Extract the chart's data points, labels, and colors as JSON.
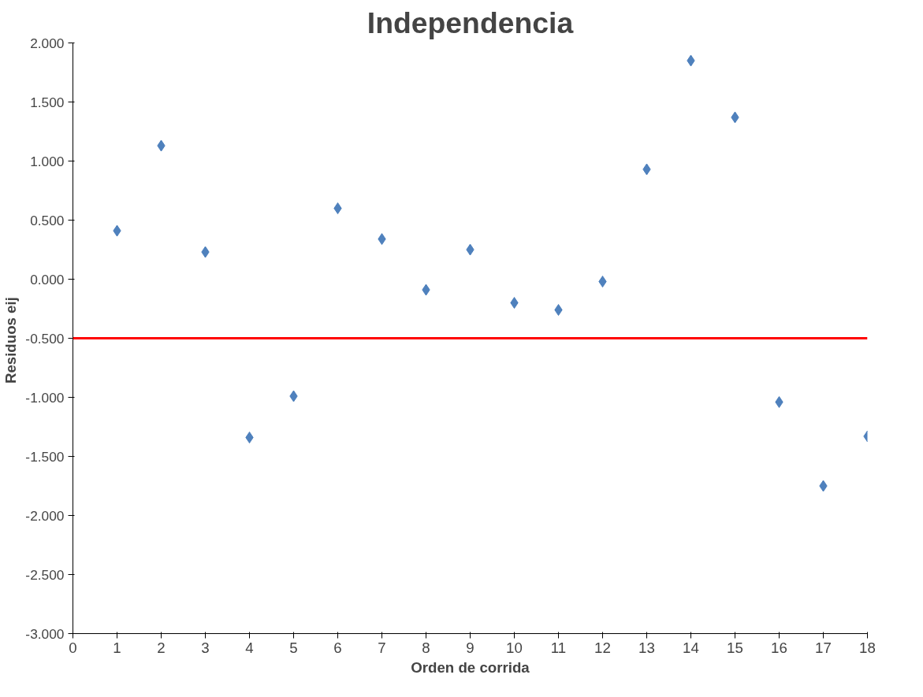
{
  "chart_data": {
    "type": "scatter",
    "title": "Independencia",
    "xlabel": "Orden de corrida",
    "ylabel": "Residuos  eij",
    "x": [
      1,
      2,
      3,
      4,
      5,
      6,
      7,
      8,
      9,
      10,
      11,
      12,
      13,
      14,
      15,
      16,
      17,
      18
    ],
    "series": [
      {
        "color": "#4f81bd",
        "values": [
          0.41,
          1.13,
          0.23,
          -1.34,
          -0.99,
          0.6,
          0.34,
          -0.09,
          0.25,
          -0.2,
          -0.26,
          -0.02,
          0.93,
          1.85,
          1.37,
          -1.04,
          -1.75,
          -1.33
        ]
      }
    ],
    "xlim": [
      0,
      18
    ],
    "xticks": [
      0,
      1,
      2,
      3,
      4,
      5,
      6,
      7,
      8,
      9,
      10,
      11,
      12,
      13,
      14,
      15,
      16,
      17,
      18
    ],
    "ylim": [
      -3,
      2
    ],
    "yticks": [
      {
        "value": -3,
        "label": "-3.000"
      },
      {
        "value": -2.5,
        "label": "-2.500"
      },
      {
        "value": -2,
        "label": "-2.000"
      },
      {
        "value": -1.5,
        "label": "-1.500"
      },
      {
        "value": -1,
        "label": "-1.000"
      },
      {
        "value": -0.5,
        "label": "-0.500"
      },
      {
        "value": 0,
        "label": "0.000"
      },
      {
        "value": 0.5,
        "label": "0.500"
      },
      {
        "value": 1,
        "label": "1.000"
      },
      {
        "value": 1.5,
        "label": "1.500"
      },
      {
        "value": 2,
        "label": "2.000"
      }
    ],
    "ref_lines": [
      {
        "axis": "y",
        "value": -0.5,
        "color": "#ff0000"
      }
    ],
    "marker": "diamond",
    "grid": false
  }
}
